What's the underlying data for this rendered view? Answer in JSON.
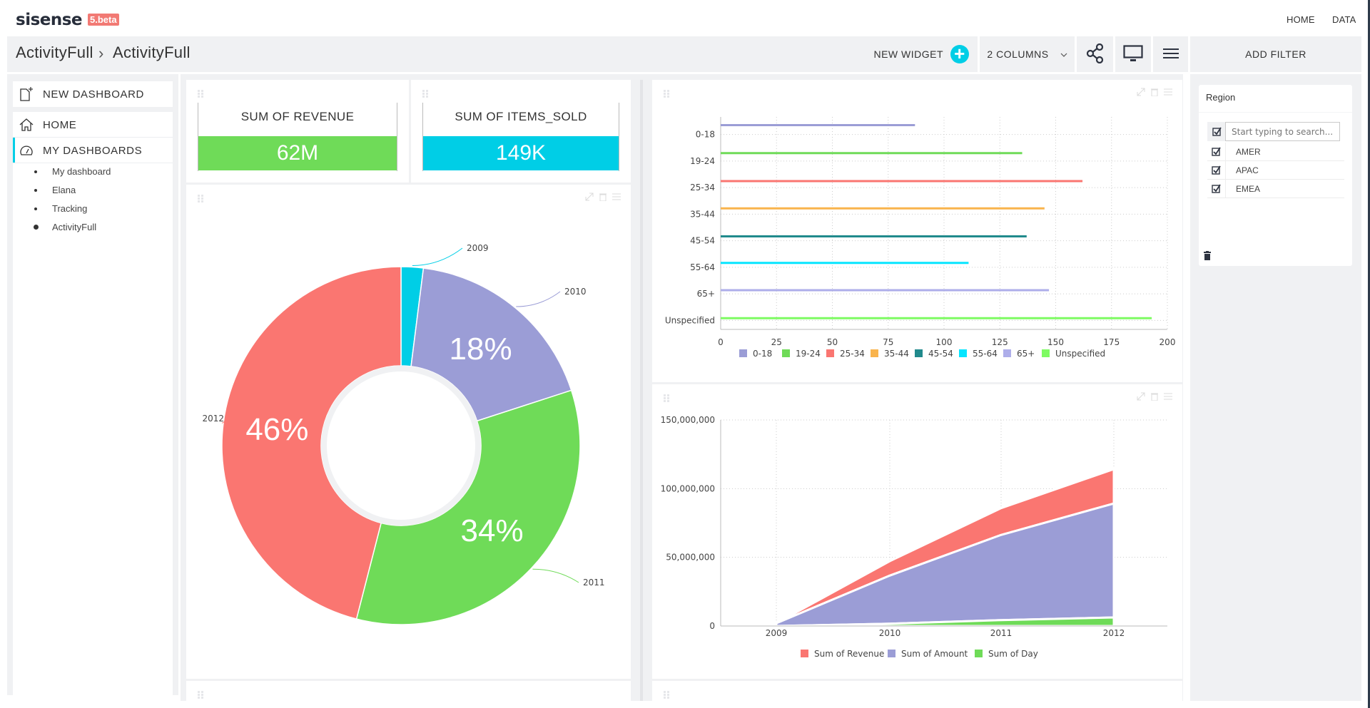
{
  "header": {
    "logo_text": "sisense",
    "version_badge": "5.beta",
    "nav": [
      {
        "label": "HOME"
      },
      {
        "label": "DATA"
      }
    ]
  },
  "toolbar": {
    "breadcrumb": [
      "ActivityFull",
      "ActivityFull"
    ],
    "new_widget_label": "NEW WIDGET",
    "columns_label": "2 COLUMNS",
    "add_filter_label": "ADD FILTER",
    "icons": [
      "plus-icon",
      "chevron-down-icon",
      "share-icon",
      "monitor-icon",
      "menu-icon"
    ]
  },
  "sidebar": {
    "new_dashboard_label": "NEW DASHBOARD",
    "home_label": "HOME",
    "my_dashboards_label": "MY DASHBOARDS",
    "dashboards": [
      {
        "label": "My dashboard",
        "current": false
      },
      {
        "label": "Elana",
        "current": false
      },
      {
        "label": "Tracking",
        "current": false
      },
      {
        "label": "ActivityFull",
        "current": true
      }
    ]
  },
  "colors": {
    "accent": "#00cee6",
    "green": "#6fdb58",
    "red": "#fa7671",
    "purple": "#9b9dd6",
    "badge": "#f27a74"
  },
  "widgets": {
    "kpi_revenue": {
      "title": "SUM OF REVENUE",
      "value": "62M",
      "color": "#6fdb58"
    },
    "kpi_items": {
      "title": "SUM OF ITEMS_SOLD",
      "value": "149K",
      "color": "#00cee6"
    }
  },
  "filters": {
    "title": "Region",
    "search_placeholder": "Start typing to search...",
    "options": [
      {
        "label": "AMER",
        "checked": true
      },
      {
        "label": "APAC",
        "checked": true
      },
      {
        "label": "EMEA",
        "checked": true
      }
    ]
  },
  "chart_data": [
    {
      "type": "pie",
      "variant": "donut",
      "categories": [
        "2009",
        "2010",
        "2011",
        "2012"
      ],
      "values": [
        2,
        18,
        34,
        46
      ],
      "data_labels": [
        "",
        "18%",
        "34%",
        "46%"
      ],
      "colors": [
        "#00cee6",
        "#9b9dd6",
        "#6fdb58",
        "#fa7671"
      ]
    },
    {
      "type": "bar",
      "orientation": "horizontal",
      "categories": [
        "0-18",
        "19-24",
        "25-34",
        "35-44",
        "45-54",
        "55-64",
        "65+",
        "Unspecified"
      ],
      "series": [
        {
          "name": "0-18",
          "category": "0-18",
          "value": 87,
          "color": "#9b9dd6"
        },
        {
          "name": "19-24",
          "category": "19-24",
          "value": 135,
          "color": "#6fdb58"
        },
        {
          "name": "25-34",
          "category": "25-34",
          "value": 162,
          "color": "#fa7671"
        },
        {
          "name": "35-44",
          "category": "35-44",
          "value": 145,
          "color": "#f9b44d"
        },
        {
          "name": "45-54",
          "category": "45-54",
          "value": 137,
          "color": "#218a8c"
        },
        {
          "name": "55-64",
          "category": "55-64",
          "value": 111,
          "color": "#06e5ff"
        },
        {
          "name": "65+",
          "category": "65+",
          "value": 147,
          "color": "#aeaeea"
        },
        {
          "name": "Unspecified",
          "category": "Unspecified",
          "value": 193,
          "color": "#7efb62"
        }
      ],
      "xlim": [
        0,
        200
      ],
      "xticks": [
        "0",
        "25",
        "50",
        "75",
        "100",
        "125",
        "150",
        "175",
        "200"
      ],
      "grid": true,
      "legend": "bottom"
    },
    {
      "type": "area",
      "stacked": true,
      "x": [
        "2009",
        "2010",
        "2011",
        "2012"
      ],
      "series": [
        {
          "name": "Sum of Revenue",
          "values": [
            0,
            10500000,
            19500000,
            25000000
          ],
          "color": "#fa7671"
        },
        {
          "name": "Sum of Amount",
          "values": [
            2000000,
            35000000,
            62000000,
            83000000
          ],
          "color": "#9b9dd6"
        },
        {
          "name": "Sum of Day",
          "values": [
            0,
            1700000,
            4300000,
            6200000
          ],
          "color": "#6fdb58"
        }
      ],
      "ylim": [
        0,
        150000000
      ],
      "yticks": [
        "0",
        "50,000,000",
        "100,000,000",
        "150,000,000"
      ],
      "grid": true,
      "legend": "bottom"
    }
  ]
}
